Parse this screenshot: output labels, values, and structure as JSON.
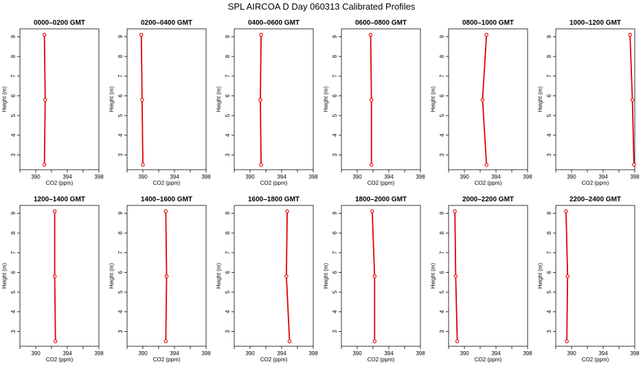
{
  "title": "SPL AIRCOA D  Day 060313  Calibrated Profiles",
  "colors": {
    "line": "#e00000",
    "point": "#e00000",
    "frame": "#000000"
  },
  "chart_data": [
    {
      "type": "line",
      "title": "0000–0200 GMT",
      "xlabel": "CO2 (ppm)",
      "ylabel": "Height (m)",
      "xlim": [
        388,
        398
      ],
      "ylim": [
        2.25,
        9.4
      ],
      "xticks": [
        390,
        394,
        398
      ],
      "yticks": [
        3,
        4,
        5,
        6,
        7,
        8,
        9
      ],
      "points": [
        {
          "x": 391.1,
          "y": 2.5
        },
        {
          "x": 391.2,
          "y": 5.8
        },
        {
          "x": 391.1,
          "y": 9.1
        }
      ]
    },
    {
      "type": "line",
      "title": "0200–0400 GMT",
      "xlabel": "CO2 (ppm)",
      "ylabel": "Height (m)",
      "xlim": [
        388,
        398
      ],
      "ylim": [
        2.25,
        9.4
      ],
      "xticks": [
        390,
        394,
        398
      ],
      "yticks": [
        3,
        4,
        5,
        6,
        7,
        8,
        9
      ],
      "points": [
        {
          "x": 390.0,
          "y": 2.5
        },
        {
          "x": 389.9,
          "y": 5.8
        },
        {
          "x": 389.8,
          "y": 9.1
        }
      ]
    },
    {
      "type": "line",
      "title": "0400–0600 GMT",
      "xlabel": "CO2 (ppm)",
      "ylabel": "Height (m)",
      "xlim": [
        388,
        398
      ],
      "ylim": [
        2.25,
        9.4
      ],
      "xticks": [
        390,
        394,
        398
      ],
      "yticks": [
        3,
        4,
        5,
        6,
        7,
        8,
        9
      ],
      "points": [
        {
          "x": 391.4,
          "y": 2.5
        },
        {
          "x": 391.3,
          "y": 5.8
        },
        {
          "x": 391.4,
          "y": 9.1
        }
      ]
    },
    {
      "type": "line",
      "title": "0600–0800 GMT",
      "xlabel": "CO2 (ppm)",
      "ylabel": "Height (m)",
      "xlim": [
        388,
        398
      ],
      "ylim": [
        2.25,
        9.4
      ],
      "xticks": [
        390,
        394,
        398
      ],
      "yticks": [
        3,
        4,
        5,
        6,
        7,
        8,
        9
      ],
      "points": [
        {
          "x": 391.8,
          "y": 2.5
        },
        {
          "x": 391.8,
          "y": 5.8
        },
        {
          "x": 391.7,
          "y": 9.1
        }
      ]
    },
    {
      "type": "line",
      "title": "0800–1000 GMT",
      "xlabel": "CO2 (ppm)",
      "ylabel": "Height (m)",
      "xlim": [
        388,
        398
      ],
      "ylim": [
        2.25,
        9.4
      ],
      "xticks": [
        390,
        394,
        398
      ],
      "yticks": [
        3,
        4,
        5,
        6,
        7,
        8,
        9
      ],
      "points": [
        {
          "x": 392.8,
          "y": 2.5
        },
        {
          "x": 392.3,
          "y": 5.8
        },
        {
          "x": 392.8,
          "y": 9.1
        }
      ]
    },
    {
      "type": "line",
      "title": "1000–1200 GMT",
      "xlabel": "CO2 (ppm)",
      "ylabel": "Height (m)",
      "xlim": [
        388,
        398
      ],
      "ylim": [
        2.25,
        9.4
      ],
      "xticks": [
        390,
        394,
        398
      ],
      "yticks": [
        3,
        4,
        5,
        6,
        7,
        8,
        9
      ],
      "points": [
        {
          "x": 397.9,
          "y": 2.5
        },
        {
          "x": 397.7,
          "y": 5.8
        },
        {
          "x": 397.4,
          "y": 9.1
        }
      ]
    },
    {
      "type": "line",
      "title": "1200–1400 GMT",
      "xlabel": "CO2 (ppm)",
      "ylabel": "Height (m)",
      "xlim": [
        388,
        398
      ],
      "ylim": [
        2.25,
        9.4
      ],
      "xticks": [
        390,
        394,
        398
      ],
      "yticks": [
        3,
        4,
        5,
        6,
        7,
        8,
        9
      ],
      "points": [
        {
          "x": 392.5,
          "y": 2.5
        },
        {
          "x": 392.4,
          "y": 5.8
        },
        {
          "x": 392.4,
          "y": 9.1
        }
      ]
    },
    {
      "type": "line",
      "title": "1400–1600 GMT",
      "xlabel": "CO2 (ppm)",
      "ylabel": "Height (m)",
      "xlim": [
        388,
        398
      ],
      "ylim": [
        2.25,
        9.4
      ],
      "xticks": [
        390,
        394,
        398
      ],
      "yticks": [
        3,
        4,
        5,
        6,
        7,
        8,
        9
      ],
      "points": [
        {
          "x": 392.9,
          "y": 2.5
        },
        {
          "x": 393.0,
          "y": 5.8
        },
        {
          "x": 392.9,
          "y": 9.1
        }
      ]
    },
    {
      "type": "line",
      "title": "1600–1800 GMT",
      "xlabel": "CO2 (ppm)",
      "ylabel": "Height (m)",
      "xlim": [
        388,
        398
      ],
      "ylim": [
        2.25,
        9.4
      ],
      "xticks": [
        390,
        394,
        398
      ],
      "yticks": [
        3,
        4,
        5,
        6,
        7,
        8,
        9
      ],
      "points": [
        {
          "x": 395.0,
          "y": 2.5
        },
        {
          "x": 394.6,
          "y": 5.8
        },
        {
          "x": 394.7,
          "y": 9.1
        }
      ]
    },
    {
      "type": "line",
      "title": "1800–2000 GMT",
      "xlabel": "CO2 (ppm)",
      "ylabel": "Height (m)",
      "xlim": [
        388,
        398
      ],
      "ylim": [
        2.25,
        9.4
      ],
      "xticks": [
        390,
        394,
        398
      ],
      "yticks": [
        3,
        4,
        5,
        6,
        7,
        8,
        9
      ],
      "points": [
        {
          "x": 392.2,
          "y": 2.5
        },
        {
          "x": 392.2,
          "y": 5.8
        },
        {
          "x": 391.9,
          "y": 9.1
        }
      ]
    },
    {
      "type": "line",
      "title": "2000–2200 GMT",
      "xlabel": "CO2 (ppm)",
      "ylabel": "Height (m)",
      "xlim": [
        388,
        398
      ],
      "ylim": [
        2.25,
        9.4
      ],
      "xticks": [
        390,
        394,
        398
      ],
      "yticks": [
        3,
        4,
        5,
        6,
        7,
        8,
        9
      ],
      "points": [
        {
          "x": 389.1,
          "y": 2.5
        },
        {
          "x": 388.9,
          "y": 5.8
        },
        {
          "x": 388.8,
          "y": 9.1
        }
      ]
    },
    {
      "type": "line",
      "title": "2200–2400 GMT",
      "xlabel": "CO2 (ppm)",
      "ylabel": "Height (m)",
      "xlim": [
        388,
        398
      ],
      "ylim": [
        2.25,
        9.4
      ],
      "xticks": [
        390,
        394,
        398
      ],
      "yticks": [
        3,
        4,
        5,
        6,
        7,
        8,
        9
      ],
      "points": [
        {
          "x": 389.4,
          "y": 2.5
        },
        {
          "x": 389.5,
          "y": 5.8
        },
        {
          "x": 389.3,
          "y": 9.1
        }
      ]
    }
  ]
}
